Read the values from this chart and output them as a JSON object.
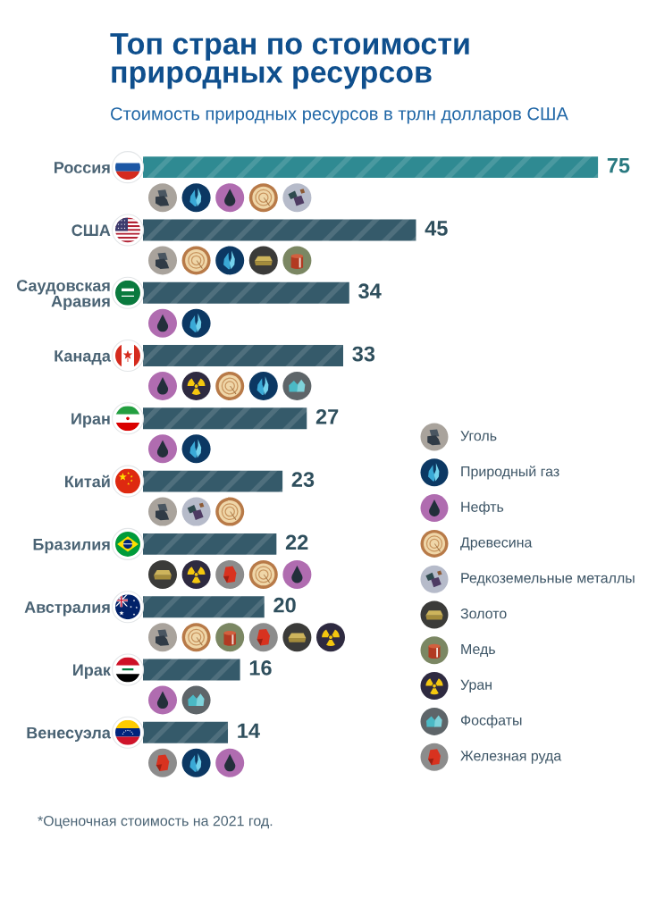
{
  "chart_data": {
    "type": "bar",
    "orientation": "horizontal",
    "title": "Топ стран по стоимости\nприродных ресурсов",
    "subtitle": "Стоимость природных ресурсов в трлн долларов США",
    "categories": [
      "Россия",
      "США",
      "Саудовская\nАравия",
      "Канада",
      "Иран",
      "Китай",
      "Бразилия",
      "Австралия",
      "Ирак",
      "Венесуэла"
    ],
    "values": [
      75,
      45,
      34,
      33,
      27,
      23,
      22,
      20,
      16,
      14
    ],
    "colors": [
      "#2f8a92",
      "#355a6a",
      "#355a6a",
      "#355a6a",
      "#355a6a",
      "#355a6a",
      "#355a6a",
      "#355a6a",
      "#355a6a",
      "#355a6a"
    ],
    "data_labels": true,
    "tick_labels": "y",
    "annotations": [
      "Уголь",
      "Природный газ",
      "Нефть",
      "Древесина",
      "Редкоземельные металлы",
      "Золото",
      "Медь",
      "Уран",
      "Фосфаты",
      "Железная руда",
      "*Оценочная стоимость на 2021 год."
    ]
  }
}
